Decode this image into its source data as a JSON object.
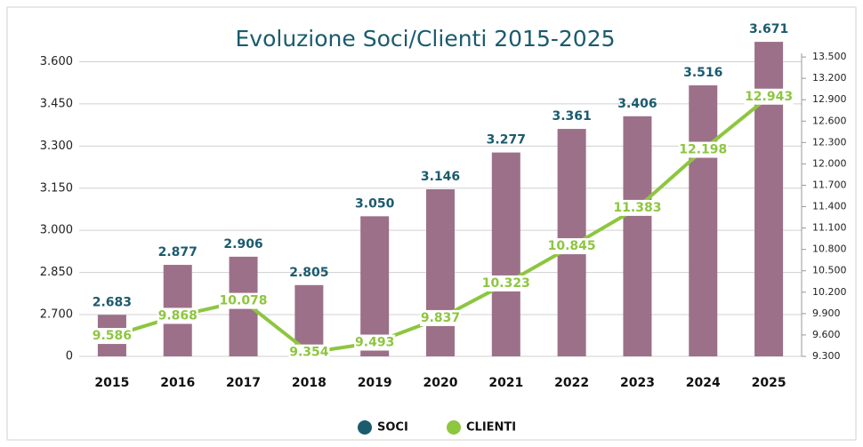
{
  "chart_data": {
    "type": "bar-line",
    "title": "Evoluzione Soci/Clienti 2015-2025",
    "categories": [
      "2015",
      "2016",
      "2017",
      "2018",
      "2019",
      "2020",
      "2021",
      "2022",
      "2023",
      "2024",
      "2025"
    ],
    "series": [
      {
        "name": "SOCI",
        "type": "bar",
        "color": "#9c7088",
        "label_color": "#1b5b6e",
        "values": [
          2683,
          2877,
          2906,
          2805,
          3050,
          3146,
          3277,
          3361,
          3406,
          3516,
          3671
        ],
        "value_labels": [
          "2.683",
          "2.877",
          "2.906",
          "2.805",
          "3.050",
          "3.146",
          "3.277",
          "3.361",
          "3.406",
          "3.516",
          "3.671"
        ]
      },
      {
        "name": "CLIENTI",
        "type": "line",
        "axis": "y2",
        "color": "#8dc63f",
        "values": [
          9586,
          9868,
          10078,
          9354,
          9493,
          9837,
          10323,
          10845,
          11383,
          12198,
          12943
        ],
        "value_labels": [
          "9.586",
          "9.868",
          "10.078",
          "9.354",
          "9.493",
          "9.837",
          "10.323",
          "10.845",
          "11.383",
          "12.198",
          "12.943"
        ]
      }
    ],
    "legend_markers": {
      "SOCI": "#1b5b6e",
      "CLIENTI": "#8dc63f"
    },
    "ylim": [
      0,
      3725
    ],
    "axis_break": 2700,
    "yticks": [
      0,
      {
        "value": 2700,
        "label": "2.700"
      },
      {
        "value": 2850,
        "label": "2.850"
      },
      {
        "value": 3000,
        "label": "3.000"
      },
      {
        "value": 3150,
        "label": "3.150"
      },
      {
        "value": 3300,
        "label": "3.300"
      },
      {
        "value": 3450,
        "label": "3.450"
      },
      {
        "value": 3600,
        "label": "3.600"
      }
    ],
    "y2lim": [
      9300,
      13925
    ],
    "y2ticks": [
      {
        "value": 9300,
        "label": "9.300"
      },
      {
        "value": 9600,
        "label": "9.600"
      },
      {
        "value": 9900,
        "label": "9.900"
      },
      {
        "value": 10200,
        "label": "10.200"
      },
      {
        "value": 10500,
        "label": "10.500"
      },
      {
        "value": 10800,
        "label": "10.800"
      },
      {
        "value": 11100,
        "label": "11.100"
      },
      {
        "value": 11400,
        "label": "11.400"
      },
      {
        "value": 11700,
        "label": "11.700"
      },
      {
        "value": 12000,
        "label": "12.000"
      },
      {
        "value": 12300,
        "label": "12.300"
      },
      {
        "value": 12600,
        "label": "12.600"
      },
      {
        "value": 12900,
        "label": "12.900"
      },
      {
        "value": 13200,
        "label": "13.200"
      },
      {
        "value": 13500,
        "label": "13.500"
      }
    ],
    "grid": true,
    "legend": "bottom"
  }
}
